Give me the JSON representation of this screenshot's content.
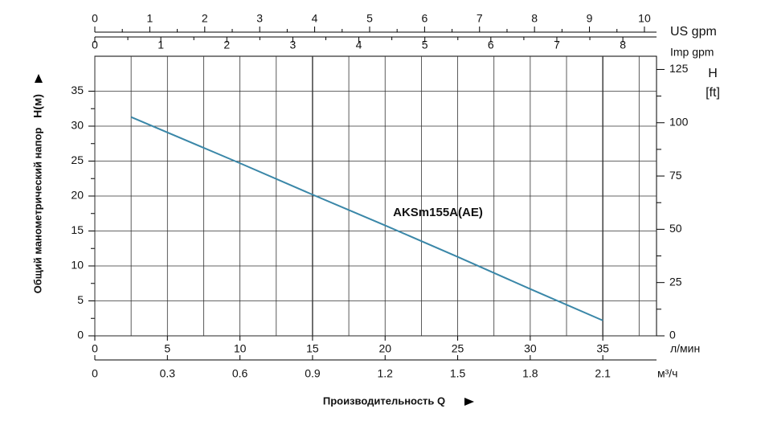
{
  "chart_data": {
    "type": "line",
    "x_label": "Производительность Q",
    "y_label": "Общий манометрический напор",
    "y_unit": "H(м)",
    "x": [
      2.5,
      10,
      15,
      20,
      25,
      30,
      35
    ],
    "series": [
      {
        "name": "AKSm155A(AE)",
        "color": "#3a87a8",
        "values": [
          31.3,
          24.7,
          20.2,
          15.8,
          11.3,
          6.7,
          2.2
        ]
      }
    ],
    "xlim": [
      0,
      38.7
    ],
    "xticks": [
      0,
      5,
      10,
      15,
      20,
      25,
      30,
      35
    ],
    "x_unit": "л/мин",
    "x2lim": [
      0,
      2.322
    ],
    "x2ticks": [
      0,
      0.3,
      0.6,
      0.9,
      1.2,
      1.5,
      1.8,
      2.1
    ],
    "x2_unit": "м³/ч",
    "ylim": [
      0,
      40
    ],
    "yticks": [
      0,
      5,
      10,
      15,
      20,
      25,
      30,
      35
    ],
    "y2lim": [
      0,
      131.2
    ],
    "y2ticks": [
      0,
      25,
      50,
      75,
      100,
      125
    ],
    "y2_unit": "H",
    "y2_unit_sub": "[ft]",
    "top_axes": [
      {
        "unit": "US gpm",
        "lim": [
          0,
          10.22
        ],
        "ticks": [
          0,
          1,
          2,
          3,
          4,
          5,
          6,
          7,
          8,
          9,
          10
        ]
      },
      {
        "unit": "Imp gpm",
        "lim": [
          0,
          8.51
        ],
        "ticks": [
          0,
          1,
          2,
          3,
          4,
          5,
          6,
          7,
          8
        ]
      }
    ],
    "grid": true
  }
}
